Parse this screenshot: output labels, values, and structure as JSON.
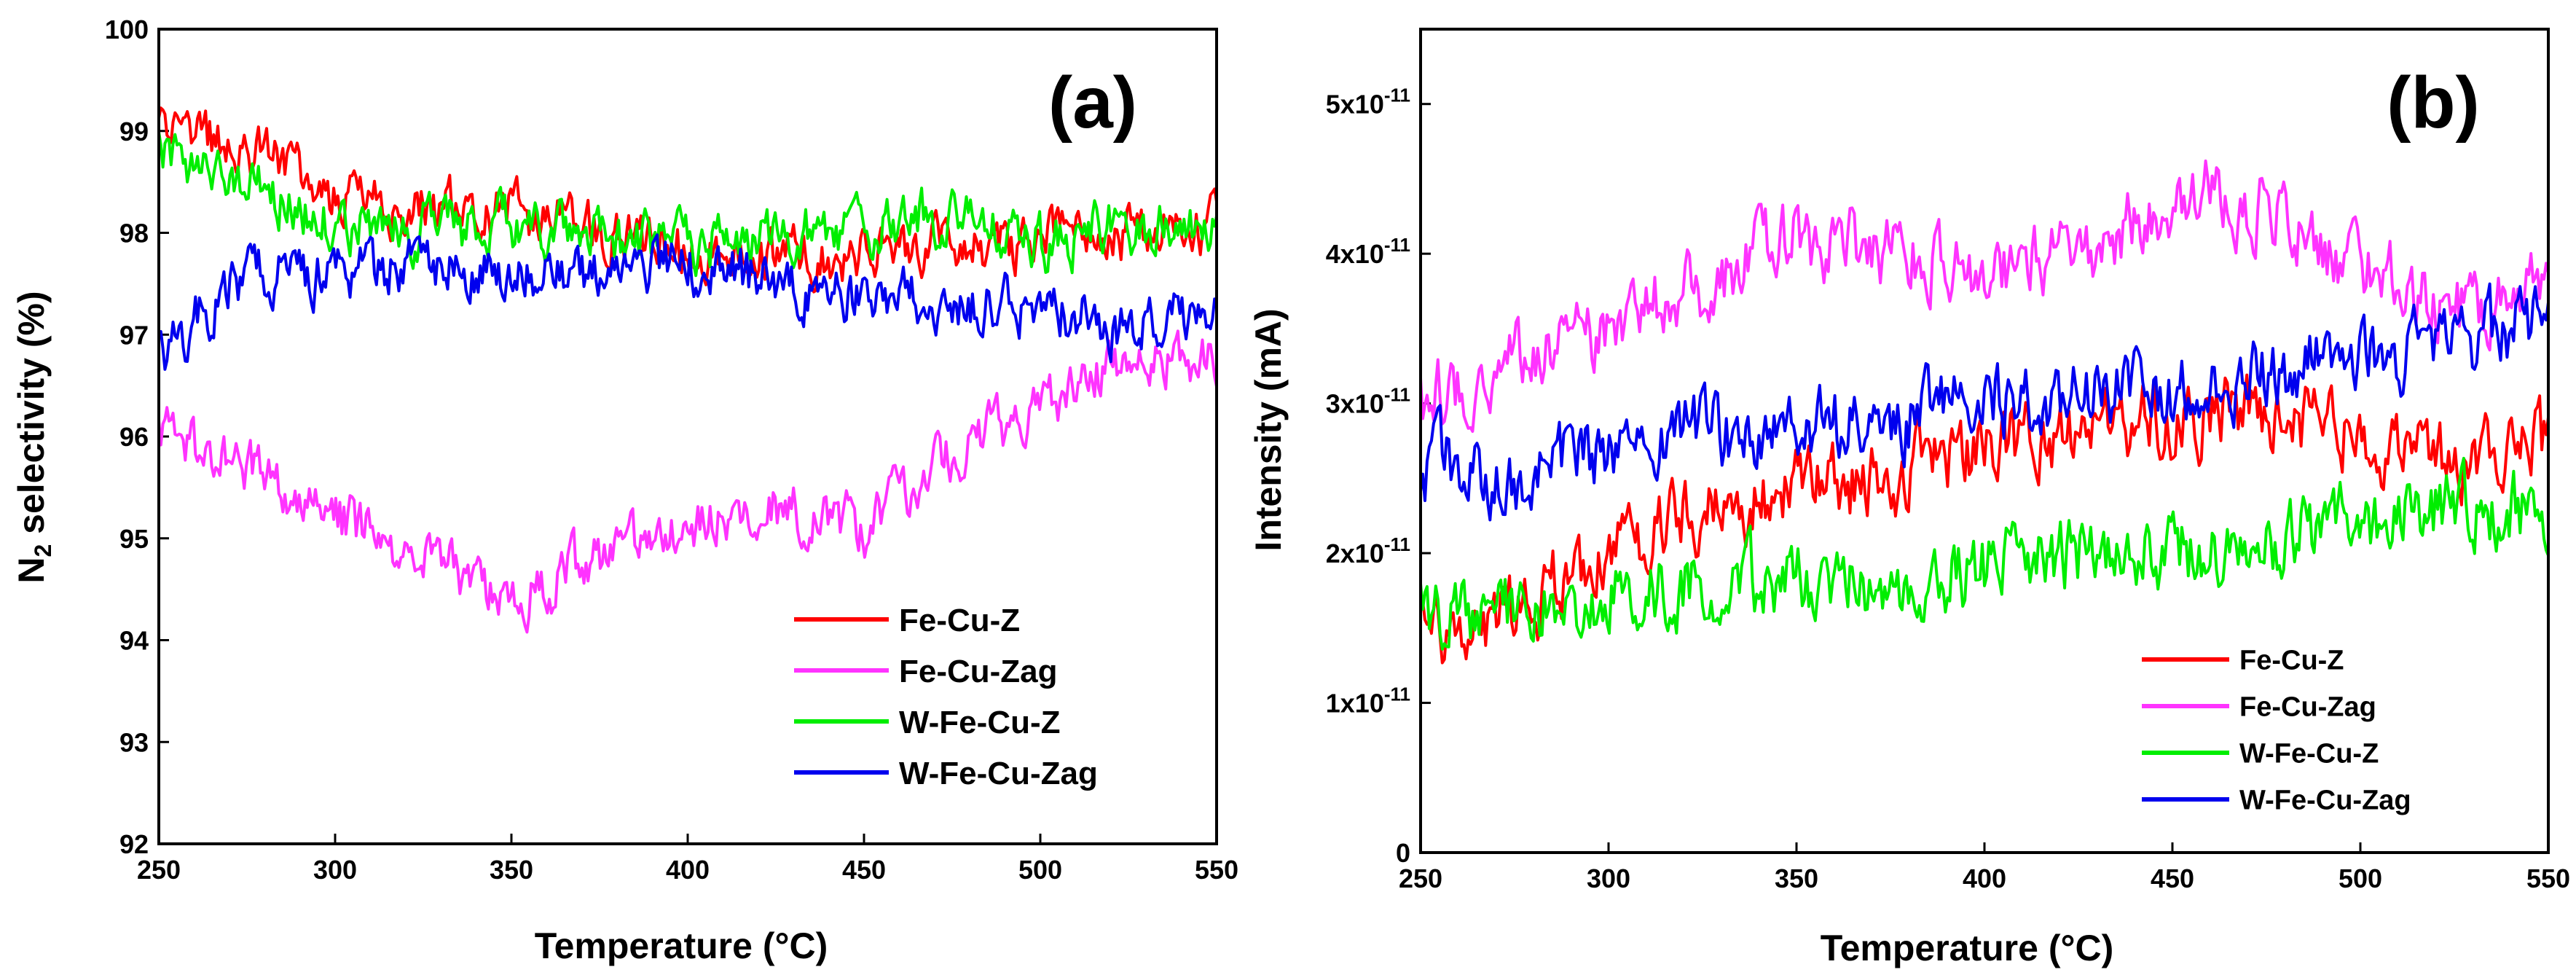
{
  "chart_data": [
    {
      "type": "line",
      "panel_label": "(a)",
      "title": "",
      "xlabel": "Temperature (°C)",
      "ylabel_main": "N",
      "ylabel_sub": "2",
      "ylabel_rest": " selectivity (%)",
      "xlim": [
        250,
        550
      ],
      "ylim": [
        92,
        100
      ],
      "xticks": [
        250,
        300,
        350,
        400,
        450,
        500,
        550
      ],
      "xtick_labels": [
        "250",
        "300",
        "350",
        "400",
        "450",
        "500",
        "550"
      ],
      "yticks": [
        92,
        93,
        94,
        95,
        96,
        97,
        98,
        99,
        100
      ],
      "ytick_labels": [
        "92",
        "93",
        "94",
        "95",
        "96",
        "97",
        "98",
        "99",
        "100"
      ],
      "legend_position": "bottom-right",
      "x": [
        250,
        275,
        300,
        325,
        350,
        375,
        400,
        425,
        450,
        475,
        500,
        525,
        550
      ],
      "series": [
        {
          "name": "Fe-Cu-Z",
          "color": "#ff0000",
          "values": [
            99.0,
            98.9,
            98.3,
            98.2,
            98.2,
            98.0,
            97.8,
            97.8,
            97.8,
            97.9,
            97.9,
            98.0,
            98.1
          ]
        },
        {
          "name": "Fe-Cu-Zag",
          "color": "#ff33ff",
          "values": [
            96.0,
            95.7,
            95.2,
            94.8,
            94.4,
            94.8,
            95.1,
            95.3,
            95.1,
            95.8,
            96.3,
            96.8,
            96.7
          ]
        },
        {
          "name": "W-Fe-Cu-Z",
          "color": "#00ee00",
          "values": [
            98.8,
            98.5,
            98.1,
            98.0,
            98.1,
            97.9,
            97.9,
            98.0,
            98.0,
            98.2,
            97.9,
            98.1,
            98.0
          ]
        },
        {
          "name": "W-Fe-Cu-Zag",
          "color": "#0000ee",
          "values": [
            96.8,
            97.6,
            97.6,
            97.7,
            97.6,
            97.6,
            97.7,
            97.5,
            97.4,
            97.3,
            97.3,
            97.0,
            97.3
          ]
        }
      ]
    },
    {
      "type": "line",
      "panel_label": "(b)",
      "title": "",
      "xlabel": "Temperature (°C)",
      "ylabel": "Intensity (mA)",
      "xlim": [
        250,
        550
      ],
      "ylim": [
        0,
        5.5e-11
      ],
      "xticks": [
        250,
        300,
        350,
        400,
        450,
        500,
        550
      ],
      "xtick_labels": [
        "250",
        "300",
        "350",
        "400",
        "450",
        "500",
        "550"
      ],
      "yticks": [
        0,
        1e-11,
        2e-11,
        3e-11,
        4e-11,
        5e-11
      ],
      "ytick_labels": [
        {
          "base": "0",
          "exp": ""
        },
        {
          "base": "1x10",
          "exp": "-11"
        },
        {
          "base": "2x10",
          "exp": "-11"
        },
        {
          "base": "3x10",
          "exp": "-11"
        },
        {
          "base": "4x10",
          "exp": "-11"
        },
        {
          "base": "5x10",
          "exp": "-11"
        }
      ],
      "legend_position": "bottom-right",
      "x": [
        250,
        275,
        300,
        325,
        350,
        375,
        400,
        425,
        450,
        475,
        500,
        525,
        550
      ],
      "series": [
        {
          "name": "Fe-Cu-Z",
          "color": "#ff0000",
          "values": [
            1.5e-11,
            1.6e-11,
            2e-11,
            2.3e-11,
            2.4e-11,
            2.5e-11,
            2.7e-11,
            2.8e-11,
            2.9e-11,
            2.9e-11,
            2.8e-11,
            2.6e-11,
            2.7e-11
          ]
        },
        {
          "name": "Fe-Cu-Zag",
          "color": "#ff33ff",
          "values": [
            3e-11,
            3.3e-11,
            3.5e-11,
            3.8e-11,
            4.1e-11,
            4e-11,
            3.9e-11,
            4e-11,
            4.4e-11,
            4.3e-11,
            3.9e-11,
            3.6e-11,
            3.8e-11
          ]
        },
        {
          "name": "W-Fe-Cu-Z",
          "color": "#00ee00",
          "values": [
            1.6e-11,
            1.6e-11,
            1.7e-11,
            1.8e-11,
            1.8e-11,
            1.8e-11,
            1.9e-11,
            2e-11,
            2e-11,
            2.1e-11,
            2.2e-11,
            2.3e-11,
            2.3e-11
          ]
        },
        {
          "name": "W-Fe-Cu-Zag",
          "color": "#0000ee",
          "values": [
            2.6e-11,
            2.5e-11,
            2.7e-11,
            2.8e-11,
            2.8e-11,
            2.9e-11,
            3e-11,
            3.1e-11,
            3.1e-11,
            3.2e-11,
            3.3e-11,
            3.4e-11,
            3.6e-11
          ]
        }
      ]
    }
  ]
}
